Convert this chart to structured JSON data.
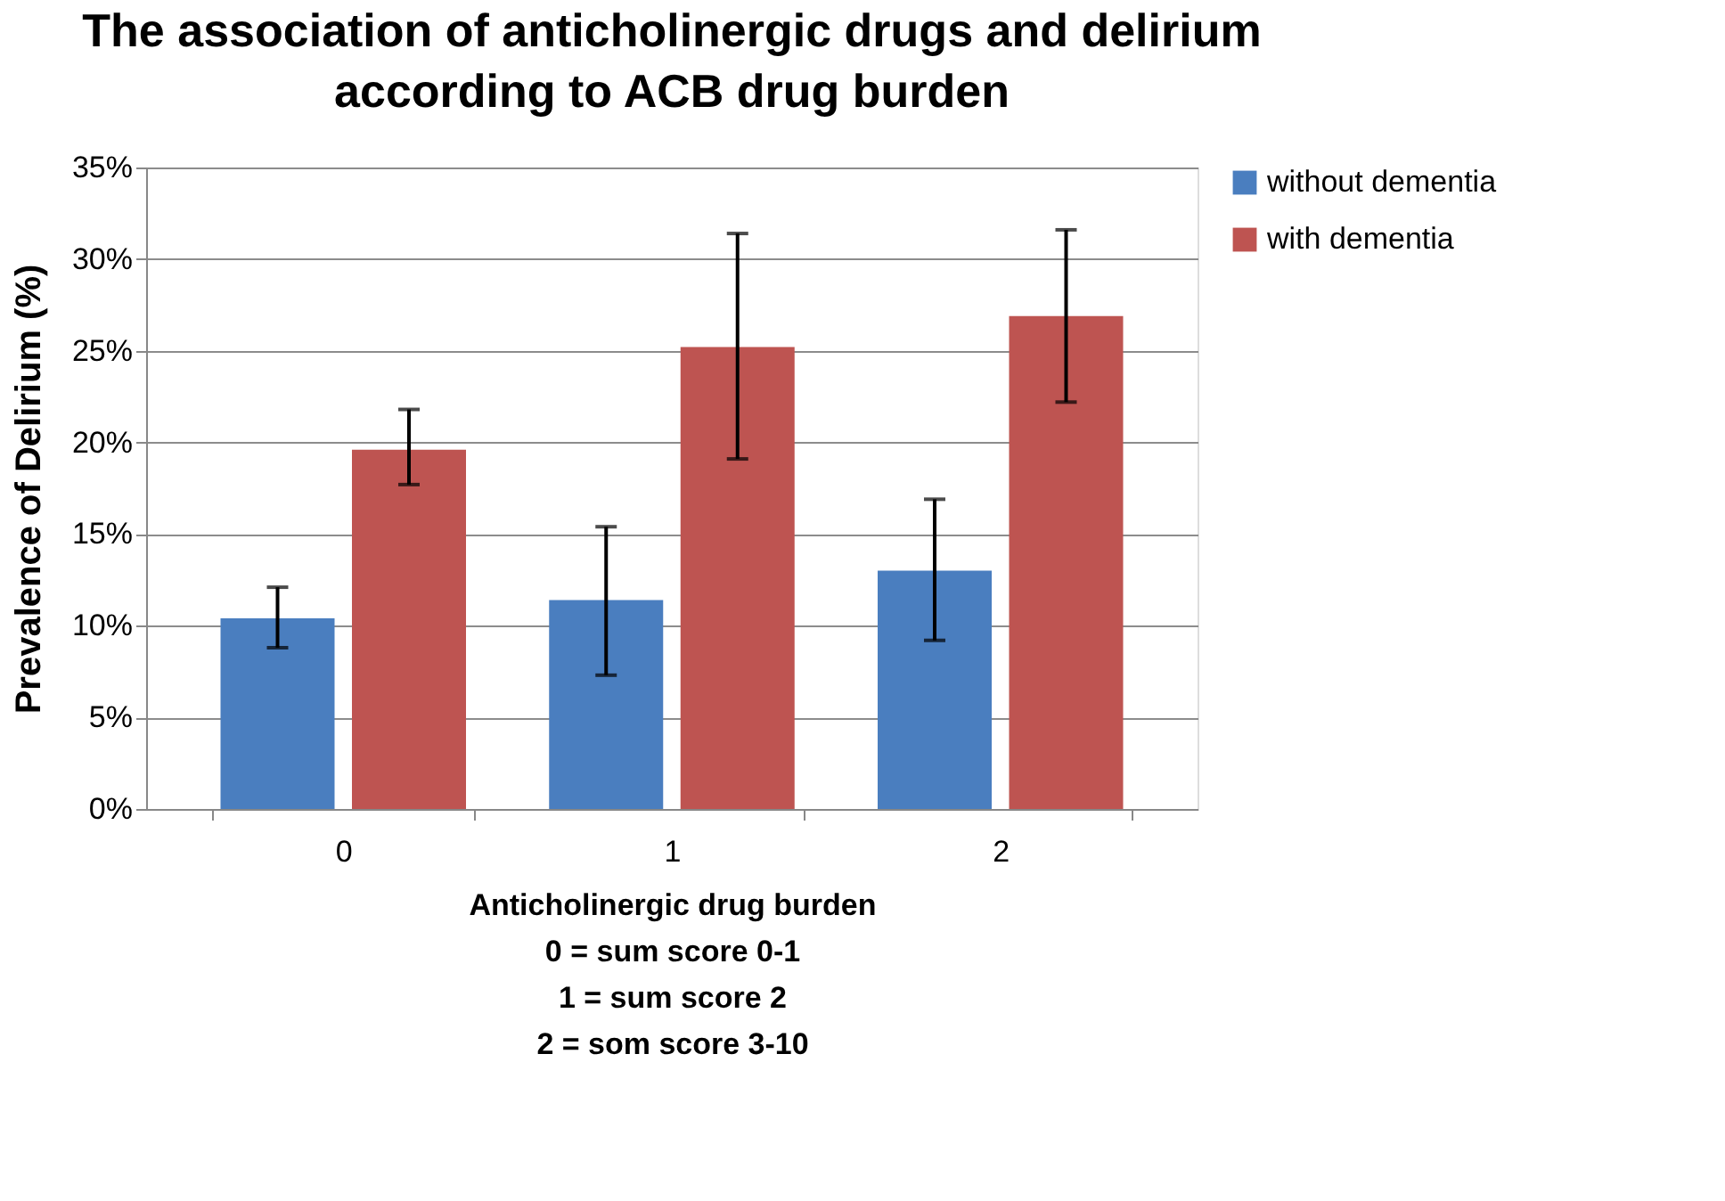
{
  "chart_data": {
    "type": "bar",
    "title": "The association of anticholinergic drugs and delirium according to ACB drug burden",
    "xlabel": "Anticholinergic drug burden",
    "ylabel": "Prevalence of Delirium (%)",
    "annotations": [
      "0 =  sum score  0-1",
      "1 =  sum score  2",
      "2 =  som score  3-10"
    ],
    "categories": [
      "0",
      "1",
      "2"
    ],
    "series": [
      {
        "name": "without dementia",
        "color": "#4a7ebf",
        "values": [
          10.4,
          11.4,
          13.0
        ],
        "errors": [
          [
            8.8,
            12.1
          ],
          [
            7.3,
            15.4
          ],
          [
            9.2,
            16.9
          ]
        ]
      },
      {
        "name": "with dementia",
        "color": "#be5451",
        "values": [
          19.6,
          25.2,
          26.9
        ],
        "errors": [
          [
            17.7,
            21.8
          ],
          [
            19.1,
            31.4
          ],
          [
            22.2,
            31.6
          ]
        ]
      }
    ],
    "ylim": [
      0,
      35
    ],
    "yticks": [
      {
        "value": 0,
        "label": "0%"
      },
      {
        "value": 5,
        "label": "5%"
      },
      {
        "value": 10,
        "label": "10%"
      },
      {
        "value": 15,
        "label": "15%"
      },
      {
        "value": 20,
        "label": "20%"
      },
      {
        "value": 25,
        "label": "25%"
      },
      {
        "value": 30,
        "label": "30%"
      },
      {
        "value": 35,
        "label": "35%"
      }
    ],
    "grid": "y",
    "legend": "right"
  }
}
